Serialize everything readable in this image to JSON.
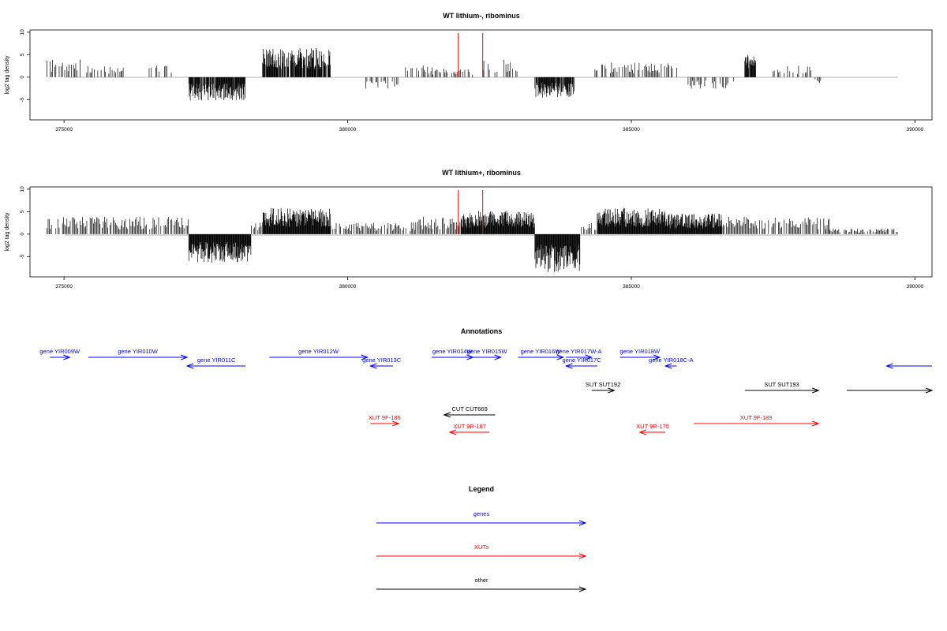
{
  "chart_data": [
    {
      "type": "bar",
      "title": "WT lithium-, ribominus",
      "ylabel": "log2 tag density",
      "xlabel": "",
      "xlim": [
        374400,
        390300
      ],
      "ylim": [
        -9.5,
        10.5
      ],
      "yticks": [
        "10",
        "5",
        "0",
        "-5"
      ],
      "xticks": [
        "375000",
        "380000",
        "385000",
        "390000"
      ],
      "grid": false,
      "coverage_profile": [
        {
          "start": 374700,
          "end": 375300,
          "value": 3
        },
        {
          "start": 375400,
          "end": 376100,
          "value": 2
        },
        {
          "start": 376500,
          "end": 376900,
          "value": 2
        },
        {
          "start": 377200,
          "end": 378200,
          "value": -4
        },
        {
          "start": 378500,
          "end": 379700,
          "value": 5
        },
        {
          "start": 380300,
          "end": 380900,
          "value": -2
        },
        {
          "start": 381000,
          "end": 381500,
          "value": 2
        },
        {
          "start": 381500,
          "end": 382400,
          "value": 1.5
        },
        {
          "start": 382400,
          "end": 383000,
          "value": 3
        },
        {
          "start": 383300,
          "end": 384000,
          "value": -3.5
        },
        {
          "start": 384300,
          "end": 385800,
          "value": 2.5
        },
        {
          "start": 386000,
          "end": 386800,
          "value": -2
        },
        {
          "start": 387000,
          "end": 387200,
          "value": 4
        },
        {
          "start": 387500,
          "end": 388200,
          "value": 2
        },
        {
          "start": 388200,
          "end": 388400,
          "value": -1
        }
      ],
      "markers": [
        {
          "x": 381950,
          "color": "#ff0000"
        },
        {
          "x": 382380,
          "color": "#ff0000"
        }
      ]
    },
    {
      "type": "bar",
      "title": "WT lithium+, ribominus",
      "ylabel": "log2 tag density",
      "xlabel": "",
      "xlim": [
        374400,
        390300
      ],
      "ylim": [
        -9.5,
        10.5
      ],
      "yticks": [
        "10",
        "5",
        "0",
        "-5"
      ],
      "xticks": [
        "375000",
        "380000",
        "385000",
        "390000"
      ],
      "grid": false,
      "coverage_profile": [
        {
          "start": 374700,
          "end": 377200,
          "value": 3
        },
        {
          "start": 377200,
          "end": 378300,
          "value": -5
        },
        {
          "start": 378300,
          "end": 378500,
          "value": 2
        },
        {
          "start": 378500,
          "end": 379700,
          "value": 4.5
        },
        {
          "start": 379700,
          "end": 381200,
          "value": 2
        },
        {
          "start": 381200,
          "end": 382000,
          "value": 3
        },
        {
          "start": 382000,
          "end": 383300,
          "value": 4
        },
        {
          "start": 383300,
          "end": 384100,
          "value": -6.5
        },
        {
          "start": 384100,
          "end": 384400,
          "value": 2
        },
        {
          "start": 384400,
          "end": 385600,
          "value": 4.5
        },
        {
          "start": 385600,
          "end": 386600,
          "value": 3.5
        },
        {
          "start": 386600,
          "end": 388500,
          "value": 3
        },
        {
          "start": 388500,
          "end": 389700,
          "value": 1
        }
      ],
      "markers": [
        {
          "x": 381950,
          "color": "#ff0000"
        },
        {
          "x": 382380,
          "color": "#ff0000"
        }
      ]
    }
  ],
  "annotations": {
    "title": "Annotations",
    "colors": {
      "gene": "#0000ff",
      "xut": "#ff0000",
      "other": "#000000"
    },
    "features": [
      {
        "label": "gene YIR009W",
        "kind": "gene",
        "row": 0,
        "start": 374750,
        "end": 375100,
        "strand": "+"
      },
      {
        "label": "gene YIR010W",
        "kind": "gene",
        "row": 0,
        "start": 375430,
        "end": 377170,
        "strand": "+"
      },
      {
        "label": "gene YIR011C",
        "kind": "gene",
        "row": 1,
        "start": 377170,
        "end": 378200,
        "strand": "-"
      },
      {
        "label": "gene YIR012W",
        "kind": "gene",
        "row": 0,
        "start": 378620,
        "end": 380350,
        "strand": "+"
      },
      {
        "label": "gene YIR013C",
        "kind": "gene",
        "row": 1,
        "start": 380400,
        "end": 380800,
        "strand": "-"
      },
      {
        "label": "gene YIR014W",
        "kind": "gene",
        "row": 0,
        "start": 381480,
        "end": 382210,
        "strand": "+"
      },
      {
        "label": "gene YIR015W",
        "kind": "gene",
        "row": 0,
        "start": 382210,
        "end": 382700,
        "strand": "+"
      },
      {
        "label": "gene YIR016W",
        "kind": "gene",
        "row": 0,
        "start": 383000,
        "end": 383800,
        "strand": "+"
      },
      {
        "label": "gene YIR017W-A",
        "kind": "gene",
        "row": 0,
        "start": 383850,
        "end": 384300,
        "strand": "+"
      },
      {
        "label": "gene YIR017C",
        "kind": "gene",
        "row": 1,
        "start": 383850,
        "end": 384400,
        "strand": "-"
      },
      {
        "label": "gene YIR018W",
        "kind": "gene",
        "row": 0,
        "start": 384800,
        "end": 385500,
        "strand": "+"
      },
      {
        "label": "gene YIR018C-A",
        "kind": "gene",
        "row": 1,
        "start": 385600,
        "end": 385800,
        "strand": "-"
      },
      {
        "label": "",
        "kind": "gene",
        "row": 2,
        "start": 389500,
        "end": 390300,
        "strand": "-"
      },
      {
        "label": "SUT SUT192",
        "kind": "other",
        "row": 3,
        "start": 384300,
        "end": 384700,
        "strand": "+"
      },
      {
        "label": "SUT SUT193",
        "kind": "other",
        "row": 3,
        "start": 387000,
        "end": 388300,
        "strand": "+"
      },
      {
        "label": "",
        "kind": "other",
        "row": 3,
        "start": 388800,
        "end": 390300,
        "strand": "+"
      },
      {
        "label": "CUT CUT669",
        "kind": "other",
        "row": 4,
        "start": 381700,
        "end": 382600,
        "strand": "-"
      },
      {
        "label": "XUT 9F-185",
        "kind": "xut",
        "row": 5,
        "start": 380400,
        "end": 380900,
        "strand": "+"
      },
      {
        "label": "XUT 9R-167",
        "kind": "xut",
        "row": 6,
        "start": 381800,
        "end": 382500,
        "strand": "-"
      },
      {
        "label": "XUT 9R-170",
        "kind": "xut",
        "row": 6,
        "start": 385150,
        "end": 385600,
        "strand": "-"
      },
      {
        "label": "XUT 9F-189",
        "kind": "xut",
        "row": 5,
        "start": 386100,
        "end": 388300,
        "strand": "+"
      }
    ]
  },
  "legend": {
    "title": "Legend",
    "items": [
      {
        "label": "genes",
        "color": "#0000ff"
      },
      {
        "label": "XUTs",
        "color": "#ff0000"
      },
      {
        "label": "other",
        "color": "#000000"
      }
    ]
  }
}
